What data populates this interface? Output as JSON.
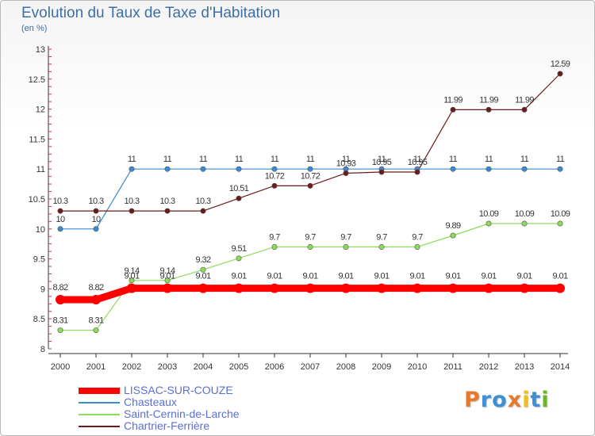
{
  "header": {
    "title": "Evolution du Taux de Taxe d'Habitation",
    "unit": "(en %)"
  },
  "logo": {
    "letters": [
      "P",
      "r",
      "o",
      "x",
      "i",
      "t",
      "i"
    ],
    "colors": [
      "#e8782b",
      "#3e8fd3",
      "#3e8fd3",
      "#e8782b",
      "#f0c020",
      "#3e8fd3",
      "#6cb42a"
    ]
  },
  "chart_data": {
    "type": "line",
    "title": "Evolution du Taux de Taxe d'Habitation",
    "ylabel": "(en %)",
    "xlabel": "",
    "ylim": [
      8,
      13
    ],
    "yticks": [
      8,
      8.5,
      9,
      9.5,
      10,
      10.5,
      11,
      11.5,
      12,
      12.5,
      13
    ],
    "ytick_labels": [
      "8",
      "8.5",
      "9",
      "9.5",
      "10",
      "10.5",
      "11",
      "11.5",
      "12",
      "12.5",
      "13"
    ],
    "x": [
      "2000",
      "2001",
      "2002",
      "2003",
      "2004",
      "2005",
      "2006",
      "2007",
      "2008",
      "2009",
      "2010",
      "2011",
      "2012",
      "2013",
      "2014"
    ],
    "grid": false,
    "legend_position": "bottom-left",
    "series": [
      {
        "name": "LISSAC-SUR-COUZE",
        "color": "#ff0000",
        "thick": true,
        "values": [
          8.82,
          8.82,
          9.01,
          9.01,
          9.01,
          9.01,
          9.01,
          9.01,
          9.01,
          9.01,
          9.01,
          9.01,
          9.01,
          9.01,
          9.01
        ],
        "labels": [
          "8.82",
          "8.82",
          "9.01",
          "9.01",
          "9.01",
          "9.01",
          "9.01",
          "9.01",
          "9.01",
          "9.01",
          "9.01",
          "9.01",
          "9.01",
          "9.01",
          "9.01"
        ]
      },
      {
        "name": "Chasteaux",
        "color": "#3a8ad0",
        "thick": false,
        "values": [
          10,
          10,
          11,
          11,
          11,
          11,
          11,
          11,
          11,
          11,
          11,
          11,
          11,
          11,
          11
        ],
        "labels": [
          "10",
          "10",
          "11",
          "11",
          "11",
          "11",
          "11",
          "11",
          "11",
          "11",
          "11",
          "11",
          "11",
          "11",
          "11"
        ]
      },
      {
        "name": "Saint-Cernin-de-Larche",
        "color": "#8cdc5a",
        "thick": false,
        "values": [
          8.31,
          8.31,
          9.14,
          9.14,
          9.32,
          9.51,
          9.7,
          9.7,
          9.7,
          9.7,
          9.7,
          9.89,
          10.09,
          10.09,
          10.09
        ],
        "labels": [
          "8.31",
          "8.31",
          "9.14",
          "9.14",
          "9.32",
          "9.51",
          "9.7",
          "9.7",
          "9.7",
          "9.7",
          "9.7",
          "9.89",
          "10.09",
          "10.09",
          "10.09"
        ]
      },
      {
        "name": "Chartrier-Ferrière",
        "color": "#6e1a1a",
        "thick": false,
        "values": [
          10.3,
          10.3,
          10.3,
          10.3,
          10.3,
          10.51,
          10.72,
          10.72,
          10.93,
          10.95,
          10.95,
          11.99,
          11.99,
          11.99,
          12.59
        ],
        "labels": [
          "10.3",
          "10.3",
          "10.3",
          "10.3",
          "10.3",
          "10.51",
          "10.72",
          "10.72",
          "10.93",
          "10.95",
          "10.95",
          "11.99",
          "11.99",
          "11.99",
          "12.59"
        ]
      }
    ]
  }
}
